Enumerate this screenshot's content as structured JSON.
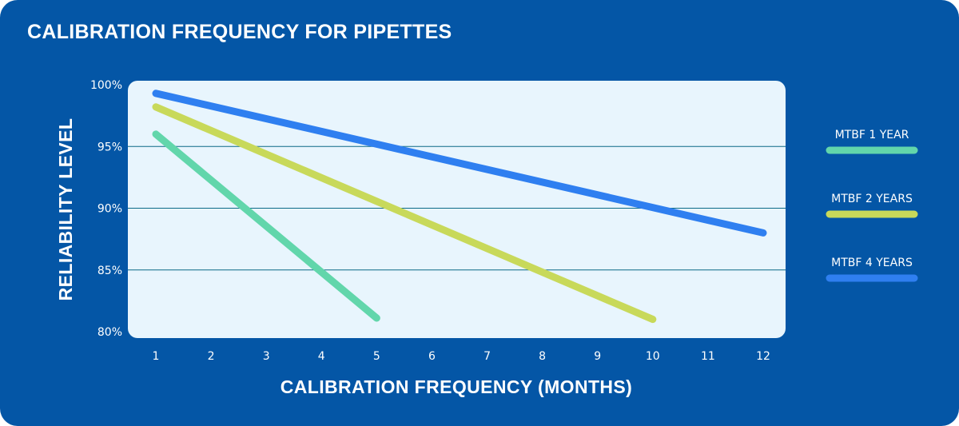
{
  "colors": {
    "background": "#0456a6",
    "plot_background": "#e8f5fd",
    "gridline": "#0b6a86",
    "mtbf_1_year": "#62d6ab",
    "mtbf_2_years": "#c8d95a",
    "mtbf_4_years": "#2f7ff0"
  },
  "chart_data": {
    "type": "line",
    "title": "CALIBRATION FREQUENCY FOR PIPETTES",
    "xlabel": "CALIBRATION FREQUENCY (MONTHS)",
    "ylabel": "RELIABILITY LEVEL",
    "x_ticks": [
      "1",
      "2",
      "3",
      "4",
      "5",
      "6",
      "7",
      "8",
      "9",
      "10",
      "11",
      "12"
    ],
    "y_ticks": [
      "80%",
      "85%",
      "90%",
      "95%",
      "100%"
    ],
    "xlim": [
      1,
      12
    ],
    "ylim": [
      80,
      100
    ],
    "grid": true,
    "legend_position": "right",
    "series": [
      {
        "name": "MTBF 1 YEAR",
        "color_key": "mtbf_1_year",
        "x": [
          1,
          5
        ],
        "y": [
          96.0,
          81.1
        ]
      },
      {
        "name": "MTBF 2 YEARS",
        "color_key": "mtbf_2_years",
        "x": [
          1,
          10
        ],
        "y": [
          98.2,
          81.0
        ]
      },
      {
        "name": "MTBF 4 YEARS",
        "color_key": "mtbf_4_years",
        "x": [
          1,
          12
        ],
        "y": [
          99.3,
          88.0
        ]
      }
    ]
  }
}
